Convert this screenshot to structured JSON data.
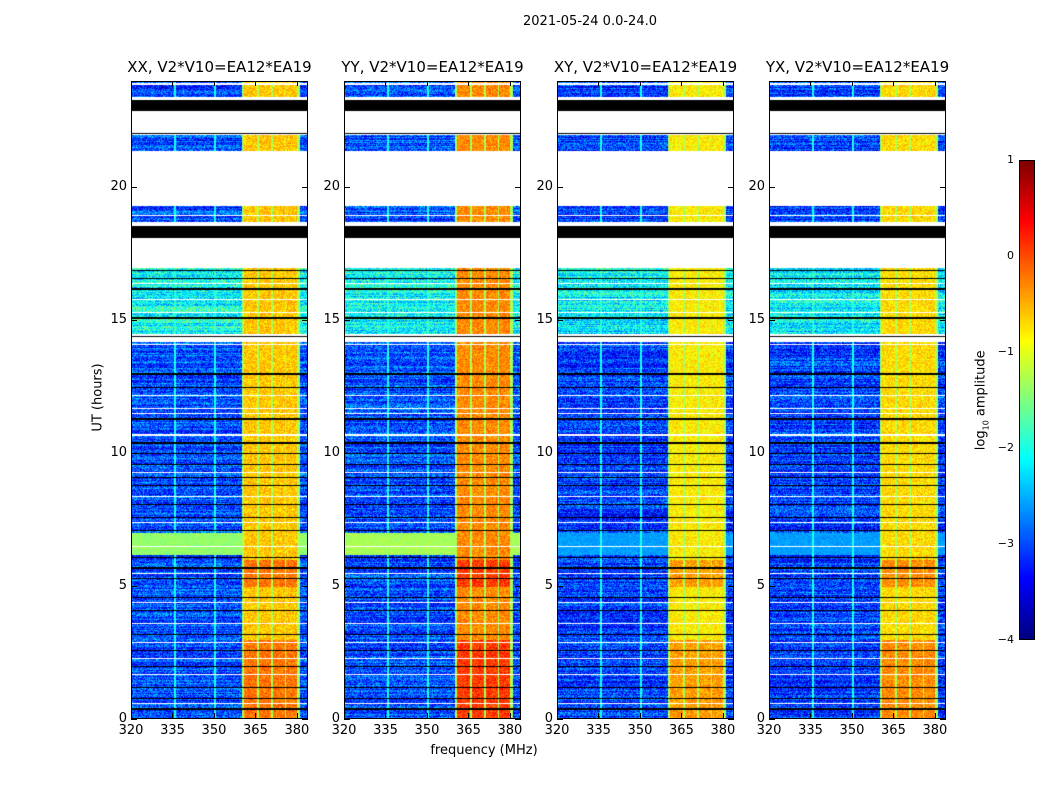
{
  "chart_data": {
    "type": "heatmap",
    "title": "2021-05-24 0.0-24.0",
    "xlabel": "frequency (MHz)",
    "ylabel": "UT (hours)",
    "xlim": [
      320,
      384
    ],
    "ylim": [
      0,
      24
    ],
    "xticks": [
      "320",
      "335",
      "350",
      "365",
      "380"
    ],
    "xtick_values": [
      320,
      335,
      350,
      365,
      380
    ],
    "yticks": [
      "0",
      "5",
      "10",
      "15",
      "20"
    ],
    "ytick_values": [
      0,
      5,
      10,
      15,
      20
    ],
    "colormap": "jet",
    "colorbar": {
      "label_main": "log",
      "label_sub": "10",
      "label_rest": " amplitude",
      "range": [
        -4,
        1
      ],
      "ticks": [
        "1",
        "0",
        "−1",
        "−2",
        "−3",
        "−4"
      ],
      "tick_values": [
        1,
        0,
        -1,
        -2,
        -3,
        -4
      ]
    },
    "panels": [
      {
        "title": "XX, V2*V10=EA12*EA19",
        "band_level": -0.6,
        "bg_level": -3.0,
        "green_level": -1.4
      },
      {
        "title": "YY, V2*V10=EA12*EA19",
        "band_level": -0.3,
        "bg_level": -3.0,
        "green_level": -1.3
      },
      {
        "title": "XY, V2*V10=EA12*EA19",
        "band_level": -0.8,
        "bg_level": -3.1,
        "green_level": -2.6
      },
      {
        "title": "YX, V2*V10=EA12*EA19",
        "band_level": -0.7,
        "bg_level": -3.1,
        "green_level": -2.6
      }
    ],
    "bright_subbands_mhz": [
      [
        360.5,
        365.5
      ],
      [
        366,
        370.5
      ],
      [
        371,
        375.5
      ],
      [
        376,
        380
      ]
    ],
    "time_segments_hours": [
      {
        "from": 23.4,
        "to": 24.0,
        "kind": "data"
      },
      {
        "from": 23.3,
        "to": 23.4,
        "kind": "flagged"
      },
      {
        "from": 22.9,
        "to": 23.3,
        "kind": "black"
      },
      {
        "from": 22.0,
        "to": 22.9,
        "kind": "flagged"
      },
      {
        "from": 21.4,
        "to": 22.0,
        "kind": "data"
      },
      {
        "from": 19.3,
        "to": 21.4,
        "kind": "flagged"
      },
      {
        "from": 18.7,
        "to": 19.3,
        "kind": "data"
      },
      {
        "from": 18.55,
        "to": 18.7,
        "kind": "flagged"
      },
      {
        "from": 18.1,
        "to": 18.55,
        "kind": "black"
      },
      {
        "from": 17.0,
        "to": 18.1,
        "kind": "flagged"
      },
      {
        "from": 14.5,
        "to": 17.0,
        "kind": "data",
        "offset": 0.9
      },
      {
        "from": 14.2,
        "to": 14.5,
        "kind": "flagged"
      },
      {
        "from": 7.0,
        "to": 14.2,
        "kind": "data"
      },
      {
        "from": 6.2,
        "to": 7.0,
        "kind": "green"
      },
      {
        "from": 0.0,
        "to": 6.2,
        "kind": "data"
      }
    ],
    "black_lines_hours": [
      22.05,
      16.9,
      16.6,
      16.2,
      15.1,
      14.4,
      13.0,
      12.5,
      11.3,
      10.4,
      10.0,
      9.6,
      9.1,
      8.8,
      8.1,
      7.6,
      7.1,
      6.1,
      5.7,
      5.3,
      4.6,
      4.1,
      3.2,
      2.6,
      2.0,
      1.2,
      0.8,
      0.4
    ],
    "flagged_lines_hours": [
      23.9,
      18.95,
      16.4,
      15.8,
      15.3,
      14.1,
      12.2,
      11.7,
      11.5,
      10.7,
      9.3,
      8.4,
      7.4,
      6.5,
      5.5,
      4.4,
      3.6,
      2.9,
      2.3,
      1.7,
      0.6
    ]
  }
}
